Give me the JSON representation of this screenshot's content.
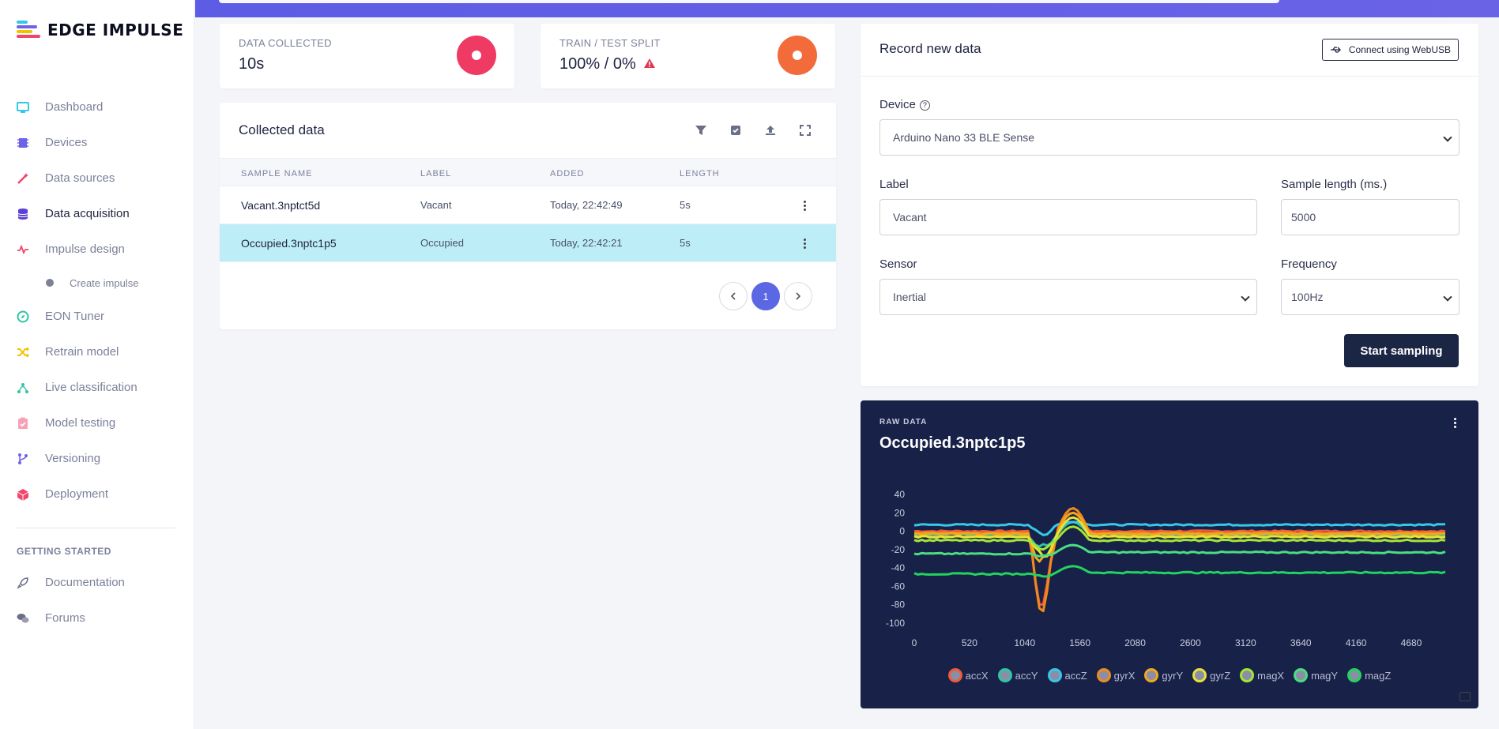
{
  "brand": {
    "name": "EDGE IMPULSE"
  },
  "sidebar": {
    "items": [
      {
        "label": "Dashboard",
        "icon": "monitor-icon",
        "color": "#38c7e8"
      },
      {
        "label": "Devices",
        "icon": "chip-icon",
        "color": "#6d63e6"
      },
      {
        "label": "Data sources",
        "icon": "magic-wand-icon",
        "color": "#f0466b"
      },
      {
        "label": "Data acquisition",
        "icon": "database-icon",
        "color": "#5b3fd6"
      },
      {
        "label": "Impulse design",
        "icon": "pulse-icon",
        "color": "#f0466b"
      },
      {
        "label": "Create impulse",
        "icon": "dot-icon",
        "color": "#7d8197"
      },
      {
        "label": "EON Tuner",
        "icon": "compass-icon",
        "color": "#31c4a5"
      },
      {
        "label": "Retrain model",
        "icon": "shuffle-icon",
        "color": "#f2c200"
      },
      {
        "label": "Live classification",
        "icon": "nodes-icon",
        "color": "#31c4a5"
      },
      {
        "label": "Model testing",
        "icon": "clipboard-check-icon",
        "color": "#f7a1b7"
      },
      {
        "label": "Versioning",
        "icon": "branch-icon",
        "color": "#6d63e6"
      },
      {
        "label": "Deployment",
        "icon": "cube-icon",
        "color": "#f0466b"
      }
    ],
    "section_heading": "GETTING STARTED",
    "getting_started": [
      {
        "label": "Documentation",
        "icon": "rocket-icon"
      },
      {
        "label": "Forums",
        "icon": "comments-icon"
      }
    ]
  },
  "stats": {
    "data_collected": {
      "label": "DATA COLLECTED",
      "value": "10s",
      "color": "#ef3b64"
    },
    "split": {
      "label": "TRAIN / TEST SPLIT",
      "value": "100% / 0%",
      "color": "#f36a3b",
      "warning_color": "#e0384f"
    }
  },
  "collected": {
    "title": "Collected data",
    "columns": [
      "SAMPLE NAME",
      "LABEL",
      "ADDED",
      "LENGTH"
    ],
    "rows": [
      {
        "name": "Vacant.3nptct5d",
        "label": "Vacant",
        "added": "Today, 22:42:49",
        "length": "5s"
      },
      {
        "name": "Occupied.3nptc1p5",
        "label": "Occupied",
        "added": "Today, 22:42:21",
        "length": "5s"
      }
    ],
    "page": "1"
  },
  "record": {
    "title": "Record new data",
    "webusb": "Connect using WebUSB",
    "device_label": "Device",
    "device_value": "Arduino Nano 33 BLE Sense",
    "label_label": "Label",
    "label_value": "Vacant",
    "length_label": "Sample length (ms.)",
    "length_value": "5000",
    "sensor_label": "Sensor",
    "sensor_value": "Inertial",
    "frequency_label": "Frequency",
    "frequency_value": "100Hz",
    "start": "Start sampling"
  },
  "raw": {
    "label": "RAW DATA",
    "title": "Occupied.3nptc1p5"
  },
  "chart_data": {
    "type": "line",
    "title": "Occupied.3nptc1p5",
    "x_ticks": [
      0,
      520,
      1040,
      1560,
      2080,
      2600,
      3120,
      3640,
      4160,
      4680
    ],
    "y_ticks": [
      40,
      20,
      0,
      -20,
      -40,
      -60,
      -80,
      -100
    ],
    "xlim": [
      0,
      5000
    ],
    "ylim": [
      -100,
      40
    ],
    "series": [
      {
        "name": "accX",
        "color": "#f05a3a",
        "baseline": 0,
        "spike": [
          -85,
          20
        ]
      },
      {
        "name": "accY",
        "color": "#31c4a5",
        "baseline": -5,
        "spike": [
          -20,
          10
        ]
      },
      {
        "name": "accZ",
        "color": "#38c7e8",
        "baseline": 7,
        "spike": [
          -5,
          10
        ]
      },
      {
        "name": "gyrX",
        "color": "#f08a1c",
        "baseline": -2,
        "spike": [
          -90,
          25
        ]
      },
      {
        "name": "gyrY",
        "color": "#f2a81c",
        "baseline": -3,
        "spike": [
          -40,
          20
        ]
      },
      {
        "name": "gyrZ",
        "color": "#e8e23a",
        "baseline": -6,
        "spike": [
          -30,
          15
        ]
      },
      {
        "name": "magX",
        "color": "#a3e635",
        "baseline": -10,
        "spike": [
          -20,
          5
        ]
      },
      {
        "name": "magY",
        "color": "#4ade80",
        "baseline": -23,
        "spike": [
          -28,
          -15
        ]
      },
      {
        "name": "magZ",
        "color": "#22d35e",
        "baseline": -45,
        "spike": [
          -50,
          -38
        ]
      }
    ]
  }
}
